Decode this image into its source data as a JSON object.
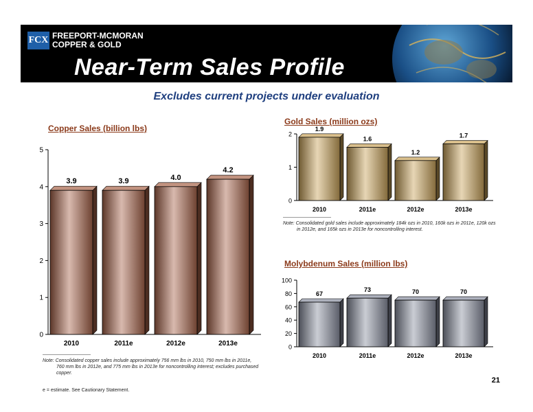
{
  "header": {
    "logo_mark": "FCX",
    "logo_line1": "FREEPORT-MCMORAN",
    "logo_line2": "COPPER & GOLD",
    "title": "Near-Term Sales Profile"
  },
  "subtitle": "Excludes current projects under evaluation",
  "chart_data": [
    {
      "type": "bar",
      "title": "Copper Sales (billion lbs)",
      "categories": [
        "2010",
        "2011e",
        "2012e",
        "2013e"
      ],
      "values": [
        3.9,
        3.9,
        4.0,
        4.2
      ],
      "labels": [
        "3.9",
        "3.9",
        "4.0",
        "4.2"
      ],
      "ylim": [
        0,
        5
      ],
      "yticks": [
        0,
        1,
        2,
        3,
        4,
        5
      ],
      "color": "#a8644a",
      "grid": false
    },
    {
      "type": "bar",
      "title": "Gold Sales (million ozs)",
      "categories": [
        "2010",
        "2011e",
        "2012e",
        "2013e"
      ],
      "values": [
        1.9,
        1.6,
        1.2,
        1.7
      ],
      "labels": [
        "1.9",
        "1.6",
        "1.2",
        "1.7"
      ],
      "ylim": [
        0,
        2
      ],
      "yticks": [
        0,
        1,
        2
      ],
      "color": "#c9a35a",
      "grid": false
    },
    {
      "type": "bar",
      "title": "Molybdenum Sales (million lbs)",
      "categories": [
        "2010",
        "2011e",
        "2012e",
        "2013e"
      ],
      "values": [
        67,
        73,
        70,
        70
      ],
      "labels": [
        "67",
        "73",
        "70",
        "70"
      ],
      "ylim": [
        0,
        100
      ],
      "yticks": [
        0,
        20,
        40,
        60,
        80,
        100
      ],
      "color": "#8a8fa0",
      "grid": false
    }
  ],
  "notes": {
    "gold_line1": "Note:  Consolidated gold sales include approximately 184k ozs in 2010, 160k ozs in 2011e, 120k ozs",
    "gold_line2": "in 2012e, and 165k ozs in 2013e for noncontrolling interest.",
    "copper_line1": "Note:  Consolidated copper sales include approximately 756 mm lbs in 2010, 750 mm lbs in 2011e,",
    "copper_line2": "760 mm lbs in 2012e, and 775 mm lbs in 2013e for noncontrolling interest; excludes purchased",
    "copper_line3": "copper."
  },
  "footer": "e =  estimate. See Cautionary Statement.",
  "page_number": "21"
}
